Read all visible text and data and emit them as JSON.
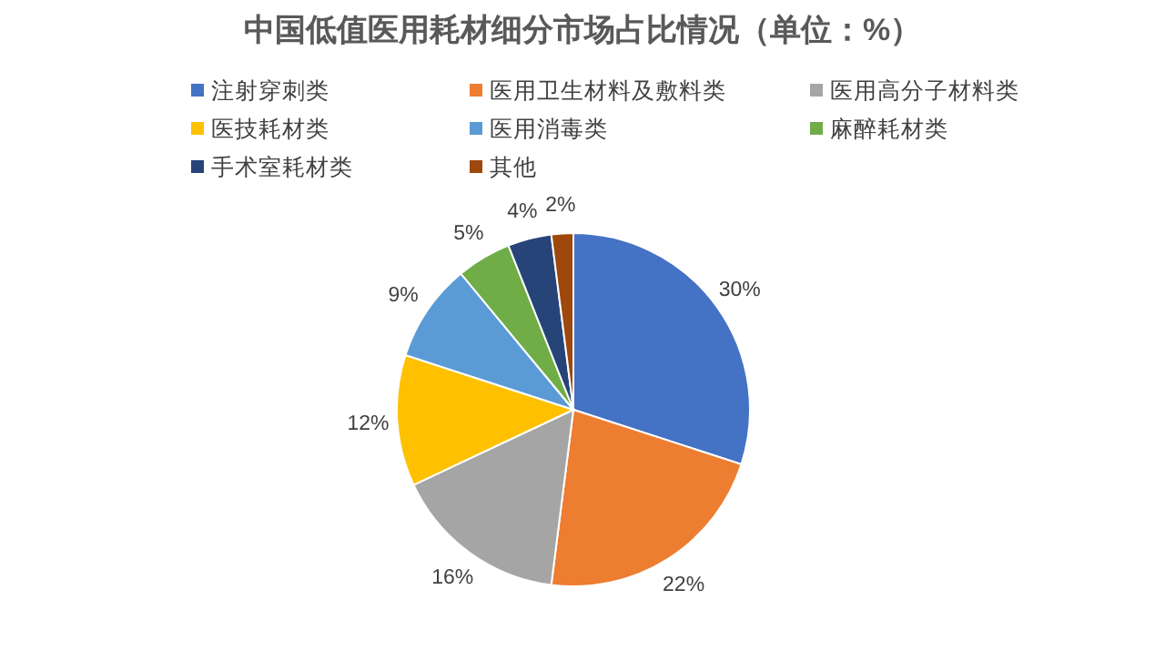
{
  "chart_data": {
    "type": "pie",
    "title": "中国低值医用耗材细分市场占比情况（单位：%）",
    "categories": [
      "注射穿刺类",
      "医用卫生材料及敷料类",
      "医用高分子材料类",
      "医技耗材类",
      "医用消毒类",
      "麻醉耗材类",
      "手术室耗材类",
      "其他"
    ],
    "values": [
      30,
      22,
      16,
      12,
      9,
      5,
      4,
      2
    ],
    "colors": [
      "#4472c4",
      "#ed7d31",
      "#a5a5a5",
      "#ffc000",
      "#5b9bd5",
      "#70ad47",
      "#264478",
      "#9e480e"
    ],
    "value_labels": [
      "30%",
      "22%",
      "16%",
      "12%",
      "9%",
      "5%",
      "4%",
      "2%"
    ],
    "legend": "top"
  }
}
